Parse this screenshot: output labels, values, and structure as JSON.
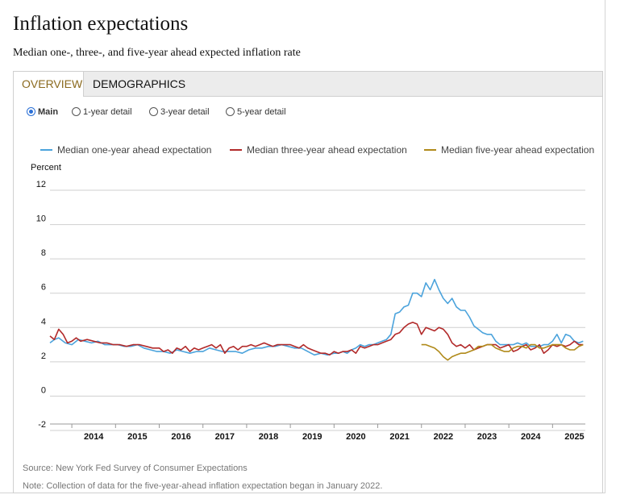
{
  "header": {
    "title": "Inflation expectations",
    "subtitle": "Median one-, three-, and five-year ahead expected inflation rate"
  },
  "tabs": [
    {
      "label": "OVERVIEW",
      "active": true
    },
    {
      "label": "DEMOGRAPHICS",
      "active": false
    }
  ],
  "radios": [
    {
      "label": "Main",
      "checked": true
    },
    {
      "label": "1-year detail",
      "checked": false
    },
    {
      "label": "3-year detail",
      "checked": false
    },
    {
      "label": "5-year detail",
      "checked": false
    }
  ],
  "footer": {
    "source": "Source: New York Fed Survey of Consumer Expectations",
    "note": "Note: Collection of data for the five-year-ahead inflation expectation began in January 2022."
  },
  "chart_data": {
    "type": "line",
    "ylabel": "Percent",
    "ylim": [
      -2,
      12
    ],
    "yticks": [
      -2,
      0,
      2,
      4,
      6,
      8,
      10,
      12
    ],
    "xlim": [
      2013.5,
      2025.75
    ],
    "xticks": [
      "2014",
      "2015",
      "2016",
      "2017",
      "2018",
      "2019",
      "2020",
      "2021",
      "2022",
      "2023",
      "2024",
      "2025"
    ],
    "legend_position": "top",
    "series": [
      {
        "name": "Median one-year ahead expectation",
        "color": "#4ba3dc",
        "x": [
          2013.5,
          2013.6,
          2013.7,
          2013.85,
          2014.0,
          2014.15,
          2014.3,
          2014.45,
          2014.6,
          2014.75,
          2014.9,
          2015.05,
          2015.2,
          2015.35,
          2015.5,
          2015.65,
          2015.8,
          2015.95,
          2016.1,
          2016.25,
          2016.4,
          2016.55,
          2016.7,
          2016.85,
          2017.0,
          2017.15,
          2017.3,
          2017.45,
          2017.6,
          2017.75,
          2017.9,
          2018.05,
          2018.2,
          2018.35,
          2018.5,
          2018.65,
          2018.8,
          2018.95,
          2019.1,
          2019.25,
          2019.4,
          2019.55,
          2019.7,
          2019.85,
          2020.0,
          2020.1,
          2020.2,
          2020.3,
          2020.4,
          2020.5,
          2020.6,
          2020.7,
          2020.8,
          2020.9,
          2021.0,
          2021.1,
          2021.2,
          2021.3,
          2021.4,
          2021.5,
          2021.6,
          2021.7,
          2021.8,
          2021.9,
          2022.0,
          2022.1,
          2022.2,
          2022.3,
          2022.4,
          2022.5,
          2022.6,
          2022.7,
          2022.8,
          2022.9,
          2023.0,
          2023.1,
          2023.2,
          2023.3,
          2023.4,
          2023.5,
          2023.6,
          2023.7,
          2023.8,
          2023.9,
          2024.0,
          2024.1,
          2024.2,
          2024.3,
          2024.4,
          2024.5,
          2024.6,
          2024.7,
          2024.8,
          2024.9,
          2025.0,
          2025.1,
          2025.2,
          2025.3,
          2025.4,
          2025.5,
          2025.6,
          2025.7
        ],
        "values": [
          3.1,
          3.3,
          3.4,
          3.1,
          3.0,
          3.3,
          3.2,
          3.1,
          3.2,
          3.0,
          3.0,
          3.0,
          2.9,
          2.9,
          3.0,
          2.8,
          2.7,
          2.6,
          2.6,
          2.5,
          2.7,
          2.6,
          2.5,
          2.6,
          2.6,
          2.8,
          2.7,
          2.6,
          2.6,
          2.6,
          2.5,
          2.7,
          2.8,
          2.8,
          2.9,
          2.9,
          3.0,
          2.9,
          2.8,
          2.8,
          2.6,
          2.4,
          2.5,
          2.4,
          2.5,
          2.5,
          2.6,
          2.5,
          2.7,
          2.8,
          3.0,
          2.9,
          3.0,
          3.0,
          3.1,
          3.2,
          3.3,
          3.6,
          4.8,
          4.9,
          5.2,
          5.3,
          6.0,
          6.0,
          5.8,
          6.6,
          6.2,
          6.8,
          6.2,
          5.7,
          5.4,
          5.7,
          5.2,
          5.0,
          5.0,
          4.6,
          4.1,
          3.9,
          3.7,
          3.6,
          3.6,
          3.2,
          3.0,
          3.0,
          3.0,
          3.0,
          3.1,
          3.0,
          3.1,
          2.9,
          2.9,
          2.9,
          3.0,
          3.0,
          3.2,
          3.6,
          3.1,
          3.6,
          3.5,
          3.2,
          3.1,
          3.2
        ]
      },
      {
        "name": "Median three-year ahead expectation",
        "color": "#b22a2a",
        "x": [
          2013.5,
          2013.6,
          2013.7,
          2013.8,
          2013.9,
          2014.0,
          2014.1,
          2014.2,
          2014.35,
          2014.5,
          2014.65,
          2014.8,
          2014.95,
          2015.1,
          2015.25,
          2015.4,
          2015.55,
          2015.7,
          2015.85,
          2016.0,
          2016.1,
          2016.2,
          2016.3,
          2016.4,
          2016.5,
          2016.6,
          2016.7,
          2016.8,
          2016.9,
          2017.0,
          2017.1,
          2017.2,
          2017.3,
          2017.4,
          2017.5,
          2017.6,
          2017.7,
          2017.8,
          2017.9,
          2018.0,
          2018.1,
          2018.2,
          2018.3,
          2018.4,
          2018.5,
          2018.6,
          2018.7,
          2018.8,
          2018.9,
          2019.0,
          2019.1,
          2019.2,
          2019.3,
          2019.4,
          2019.5,
          2019.6,
          2019.7,
          2019.8,
          2019.9,
          2020.0,
          2020.1,
          2020.2,
          2020.3,
          2020.4,
          2020.5,
          2020.6,
          2020.7,
          2020.8,
          2020.9,
          2021.0,
          2021.1,
          2021.2,
          2021.3,
          2021.4,
          2021.5,
          2021.6,
          2021.7,
          2021.8,
          2021.9,
          2022.0,
          2022.1,
          2022.2,
          2022.3,
          2022.4,
          2022.5,
          2022.6,
          2022.7,
          2022.8,
          2022.9,
          2023.0,
          2023.1,
          2023.2,
          2023.3,
          2023.4,
          2023.5,
          2023.6,
          2023.7,
          2023.8,
          2023.9,
          2024.0,
          2024.1,
          2024.2,
          2024.3,
          2024.4,
          2024.5,
          2024.6,
          2024.7,
          2024.8,
          2024.9,
          2025.0,
          2025.1,
          2025.2,
          2025.3,
          2025.4,
          2025.5,
          2025.6,
          2025.7
        ],
        "values": [
          3.5,
          3.3,
          3.9,
          3.6,
          3.1,
          3.2,
          3.4,
          3.2,
          3.3,
          3.2,
          3.1,
          3.1,
          3.0,
          3.0,
          2.9,
          3.0,
          3.0,
          2.9,
          2.8,
          2.8,
          2.6,
          2.7,
          2.5,
          2.8,
          2.7,
          2.9,
          2.6,
          2.8,
          2.7,
          2.8,
          2.9,
          3.0,
          2.8,
          3.0,
          2.5,
          2.8,
          2.9,
          2.7,
          2.9,
          2.9,
          3.0,
          2.9,
          3.0,
          3.1,
          3.0,
          2.9,
          3.0,
          3.0,
          3.0,
          3.0,
          2.9,
          2.8,
          3.0,
          2.8,
          2.7,
          2.6,
          2.5,
          2.5,
          2.4,
          2.6,
          2.5,
          2.6,
          2.6,
          2.7,
          2.5,
          2.9,
          2.8,
          2.9,
          3.0,
          3.0,
          3.1,
          3.2,
          3.3,
          3.6,
          3.7,
          4.0,
          4.2,
          4.3,
          4.2,
          3.6,
          4.0,
          3.9,
          3.8,
          4.0,
          3.9,
          3.6,
          3.1,
          2.9,
          3.0,
          2.8,
          3.0,
          2.7,
          2.8,
          2.9,
          3.0,
          3.0,
          3.0,
          2.8,
          2.9,
          3.0,
          2.6,
          2.7,
          2.9,
          3.0,
          2.7,
          2.8,
          3.0,
          2.5,
          2.7,
          3.0,
          2.9,
          3.0,
          2.9,
          3.0,
          3.2,
          3.0,
          3.0
        ]
      },
      {
        "name": "Median five-year ahead expectation",
        "color": "#b08a1a",
        "x": [
          2022.0,
          2022.1,
          2022.2,
          2022.3,
          2022.4,
          2022.5,
          2022.6,
          2022.7,
          2022.8,
          2022.9,
          2023.0,
          2023.1,
          2023.2,
          2023.3,
          2023.4,
          2023.5,
          2023.6,
          2023.7,
          2023.8,
          2023.9,
          2024.0,
          2024.1,
          2024.2,
          2024.3,
          2024.4,
          2024.5,
          2024.6,
          2024.7,
          2024.8,
          2024.9,
          2025.0,
          2025.1,
          2025.2,
          2025.3,
          2025.4,
          2025.5,
          2025.6,
          2025.7
        ],
        "values": [
          3.0,
          3.0,
          2.9,
          2.8,
          2.6,
          2.3,
          2.1,
          2.3,
          2.4,
          2.5,
          2.5,
          2.6,
          2.7,
          2.9,
          2.9,
          3.0,
          3.0,
          2.8,
          2.7,
          2.6,
          2.6,
          2.8,
          2.9,
          2.9,
          2.8,
          3.0,
          3.0,
          2.8,
          2.8,
          2.9,
          3.0,
          3.0,
          3.0,
          2.8,
          2.7,
          2.7,
          2.9,
          3.0
        ]
      }
    ]
  }
}
